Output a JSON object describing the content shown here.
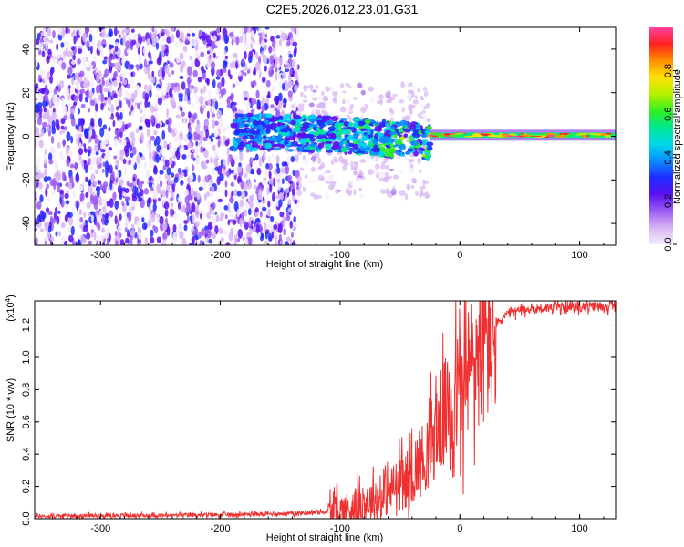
{
  "title": "C2E5.2026.012.23.01.G31",
  "chart_data": [
    {
      "type": "heatmap",
      "xlabel": "Height of straight line (km)",
      "ylabel": "Frequency (Hz)",
      "xlim": [
        -355,
        130
      ],
      "ylim": [
        -50,
        50
      ],
      "xticks": [
        -300,
        -200,
        -100,
        0,
        100
      ],
      "yticks": [
        -40,
        -20,
        0,
        20,
        40
      ],
      "colorbar": {
        "label": "Normalized spectral amplitude",
        "range": [
          0,
          1
        ],
        "ticks": [
          0.0,
          0.2,
          0.4,
          0.6,
          0.8
        ],
        "colors": [
          "#f3ecfb",
          "#d8b4f4",
          "#9b5cf2",
          "#5a10f0",
          "#1e2cff",
          "#0a8cff",
          "#00d8e8",
          "#00e890",
          "#30f020",
          "#b8f000",
          "#ffe000",
          "#ff9000",
          "#ff2020",
          "#ff40a0"
        ]
      },
      "regions": [
        {
          "x_range": [
            -355,
            -135
          ],
          "description": "broadband noise",
          "level": 0.2
        },
        {
          "x_range": [
            -190,
            -25
          ],
          "center_hz": [
            2,
            -3
          ],
          "width_hz": 8,
          "level": 0.5
        },
        {
          "x_range": [
            -25,
            130
          ],
          "center_hz": 0.5,
          "width_hz": 3,
          "level": 0.75
        }
      ]
    },
    {
      "type": "line",
      "xlabel": "Height of straight line (km)",
      "ylabel": "SNR (10 * v/v)",
      "y_multiplier": "(x10^4)",
      "y_multiplier_base": "(x10",
      "y_multiplier_exp": "4",
      "xlim": [
        -355,
        130
      ],
      "ylim": [
        0,
        1.35
      ],
      "xticks": [
        -300,
        -200,
        -100,
        0,
        100
      ],
      "yticks": [
        0.0,
        0.2,
        0.4,
        0.6,
        0.8,
        1.0,
        1.2
      ],
      "series": [
        {
          "color": "#f03030",
          "x": [
            -355,
            -300,
            -250,
            -200,
            -150,
            -120,
            -100,
            -90,
            -80,
            -70,
            -60,
            -50,
            -45,
            -40,
            -35,
            -30,
            -25,
            -20,
            -15,
            -10,
            -5,
            0,
            5,
            10,
            15,
            20,
            25,
            30,
            35,
            40,
            50,
            60,
            80,
            100,
            130
          ],
          "y": [
            0.015,
            0.02,
            0.02,
            0.025,
            0.03,
            0.04,
            0.05,
            0.07,
            0.1,
            0.12,
            0.16,
            0.22,
            0.24,
            0.28,
            0.34,
            0.38,
            0.45,
            0.55,
            0.62,
            0.68,
            0.75,
            0.8,
            0.86,
            0.95,
            1.02,
            1.05,
            1.12,
            1.2,
            1.24,
            1.27,
            1.29,
            1.3,
            1.31,
            1.31,
            1.32
          ]
        }
      ]
    }
  ]
}
